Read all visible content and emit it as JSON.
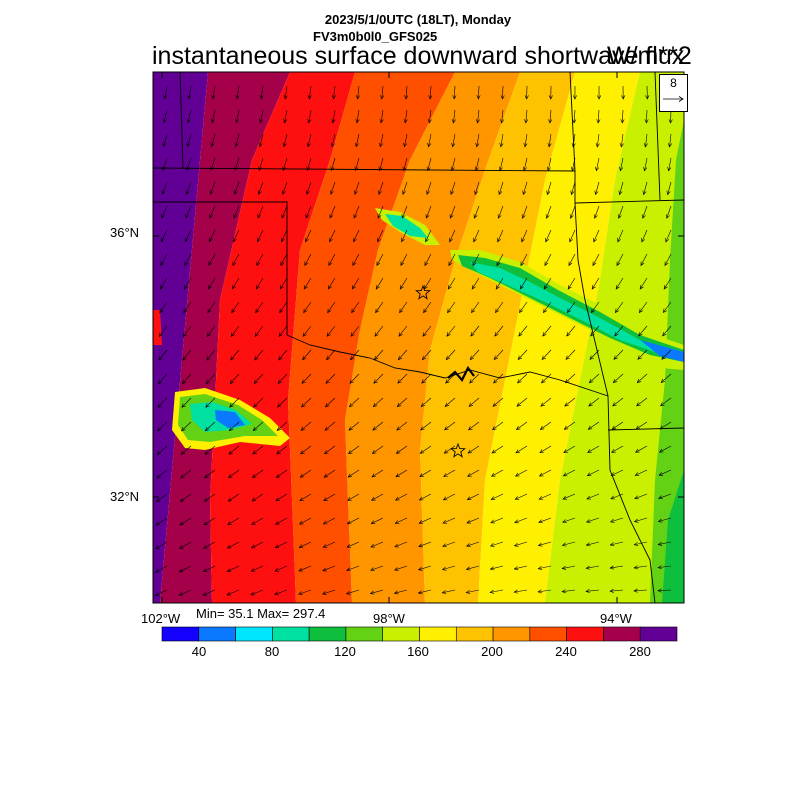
{
  "title": {
    "date_line": "2023/5/1/0UTC (18LT), Monday",
    "model_line": "FV3m0b0l0_GFS025",
    "variable": "instantaneous surface downward shortwave flux",
    "units": "W/m**2"
  },
  "reference_vector": {
    "value": "8",
    "icon": "right-arrow-icon"
  },
  "axes": {
    "lat_labels": [
      "36°N",
      "32°N"
    ],
    "lon_labels": [
      "102°W",
      "98°W",
      "94°W"
    ]
  },
  "stats": {
    "text": "Min= 35.1 Max= 297.4",
    "min": 35.1,
    "max": 297.4
  },
  "colorbar": {
    "colors": [
      "#1400ff",
      "#0a78ff",
      "#00e6ff",
      "#00e0a0",
      "#0dbf3c",
      "#64d214",
      "#c8f000",
      "#ffef00",
      "#ffc200",
      "#ff9600",
      "#ff5000",
      "#ff1010",
      "#a5004a",
      "#620095"
    ],
    "tick_labels": [
      "40",
      "80",
      "120",
      "160",
      "200",
      "240",
      "280"
    ],
    "range": [
      20,
      300
    ],
    "step": 20
  },
  "map_markers": [
    "star-icon",
    "star-icon"
  ]
}
